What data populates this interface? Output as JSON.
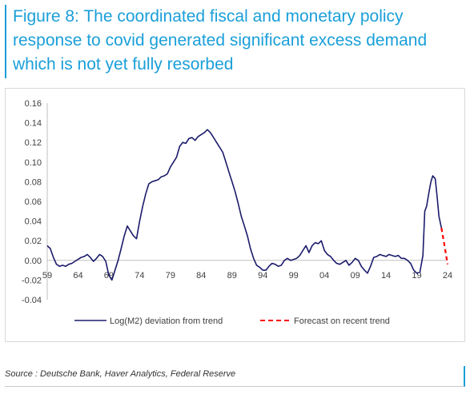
{
  "header": {
    "title_lines": [
      "Figure 8: The coordinated fiscal and monetary policy",
      "response to covid generated significant excess demand",
      "which is not yet fully resorbed"
    ]
  },
  "footer": {
    "source": "Source : Deutsche Bank, Haver Analytics, Federal Reserve"
  },
  "chart_data": {
    "type": "line",
    "title": "",
    "xlabel": "",
    "ylabel": "",
    "x_range": [
      1959,
      2024
    ],
    "ylim": [
      -0.04,
      0.16
    ],
    "y_ticks": [
      -0.04,
      -0.02,
      0.0,
      0.02,
      0.04,
      0.06,
      0.08,
      0.1,
      0.12,
      0.14,
      0.16
    ],
    "y_tick_labels": [
      "-0.04",
      "-0.02",
      "0.00",
      "0.02",
      "0.04",
      "0.06",
      "0.08",
      "0.10",
      "0.12",
      "0.14",
      "0.16"
    ],
    "x_ticks": [
      1959,
      1964,
      1969,
      1974,
      1979,
      1984,
      1989,
      1994,
      1999,
      2004,
      2009,
      2014,
      2019,
      2024
    ],
    "x_tick_labels": [
      "59",
      "64",
      "69",
      "74",
      "79",
      "84",
      "89",
      "94",
      "99",
      "04",
      "09",
      "14",
      "19",
      "24"
    ],
    "grid": false,
    "legend_position": "bottom",
    "colors": {
      "series": "#1b1b6b",
      "forecast": "#ff0000",
      "axis": "#bfbfbf",
      "title": "#1a9fd9"
    },
    "series": [
      {
        "name": "Log(M2) deviation from trend",
        "style": "solid",
        "x": [
          1959.0,
          1959.5,
          1960.0,
          1960.5,
          1961.0,
          1961.5,
          1962.0,
          1962.5,
          1963.0,
          1963.5,
          1964.0,
          1964.5,
          1965.0,
          1965.5,
          1966.0,
          1966.5,
          1967.0,
          1967.5,
          1968.0,
          1968.5,
          1969.0,
          1969.5,
          1970.0,
          1970.5,
          1971.0,
          1971.5,
          1972.0,
          1972.5,
          1973.0,
          1973.5,
          1974.0,
          1974.5,
          1975.0,
          1975.5,
          1976.0,
          1976.5,
          1977.0,
          1977.5,
          1978.0,
          1978.5,
          1979.0,
          1979.5,
          1980.0,
          1980.5,
          1981.0,
          1981.5,
          1982.0,
          1982.5,
          1983.0,
          1983.5,
          1984.0,
          1984.5,
          1985.0,
          1985.5,
          1986.0,
          1986.5,
          1987.0,
          1987.5,
          1988.0,
          1988.5,
          1989.0,
          1989.5,
          1990.0,
          1990.5,
          1991.0,
          1991.5,
          1992.0,
          1992.5,
          1993.0,
          1993.5,
          1994.0,
          1994.5,
          1995.0,
          1995.5,
          1996.0,
          1996.5,
          1997.0,
          1997.5,
          1998.0,
          1998.5,
          1999.0,
          1999.5,
          2000.0,
          2000.5,
          2001.0,
          2001.5,
          2002.0,
          2002.5,
          2003.0,
          2003.5,
          2004.0,
          2004.5,
          2005.0,
          2005.5,
          2006.0,
          2006.5,
          2007.0,
          2007.5,
          2008.0,
          2008.5,
          2009.0,
          2009.5,
          2010.0,
          2010.5,
          2011.0,
          2011.5,
          2012.0,
          2012.5,
          2013.0,
          2013.5,
          2014.0,
          2014.5,
          2015.0,
          2015.5,
          2016.0,
          2016.5,
          2017.0,
          2017.5,
          2018.0,
          2018.5,
          2019.0,
          2019.5,
          2020.0,
          2020.3,
          2020.6,
          2021.0,
          2021.3,
          2021.6,
          2022.0,
          2022.3,
          2022.6,
          2023.0
        ],
        "values": [
          0.015,
          0.012,
          0.003,
          -0.004,
          -0.006,
          -0.005,
          -0.006,
          -0.004,
          -0.003,
          -0.001,
          0.001,
          0.003,
          0.004,
          0.006,
          0.003,
          -0.001,
          0.002,
          0.006,
          0.004,
          -0.001,
          -0.015,
          -0.02,
          -0.01,
          0.0,
          0.012,
          0.025,
          0.035,
          0.03,
          0.025,
          0.022,
          0.04,
          0.055,
          0.068,
          0.078,
          0.08,
          0.081,
          0.082,
          0.085,
          0.086,
          0.088,
          0.095,
          0.1,
          0.105,
          0.116,
          0.12,
          0.119,
          0.124,
          0.125,
          0.122,
          0.126,
          0.128,
          0.13,
          0.133,
          0.13,
          0.125,
          0.12,
          0.115,
          0.11,
          0.1,
          0.09,
          0.08,
          0.07,
          0.058,
          0.045,
          0.035,
          0.025,
          0.012,
          0.002,
          -0.005,
          -0.007,
          -0.01,
          -0.01,
          -0.006,
          -0.003,
          -0.004,
          -0.006,
          -0.005,
          0.0,
          0.002,
          0.0,
          0.001,
          0.002,
          0.005,
          0.01,
          0.015,
          0.008,
          0.015,
          0.018,
          0.017,
          0.02,
          0.01,
          0.006,
          0.004,
          0.0,
          -0.003,
          -0.004,
          -0.002,
          0.0,
          -0.005,
          -0.002,
          0.002,
          0.0,
          -0.006,
          -0.01,
          -0.013,
          -0.006,
          0.003,
          0.004,
          0.006,
          0.005,
          0.004,
          0.006,
          0.005,
          0.004,
          0.005,
          0.002,
          0.002,
          0.0,
          -0.003,
          -0.01,
          -0.013,
          -0.012,
          0.005,
          0.05,
          0.055,
          0.07,
          0.08,
          0.086,
          0.083,
          0.065,
          0.045,
          0.033
        ]
      },
      {
        "name": "Forecast on recent trend",
        "style": "dashed",
        "x": [
          2023.0,
          2023.5,
          2024.0
        ],
        "values": [
          0.033,
          0.015,
          -0.004
        ]
      }
    ]
  }
}
